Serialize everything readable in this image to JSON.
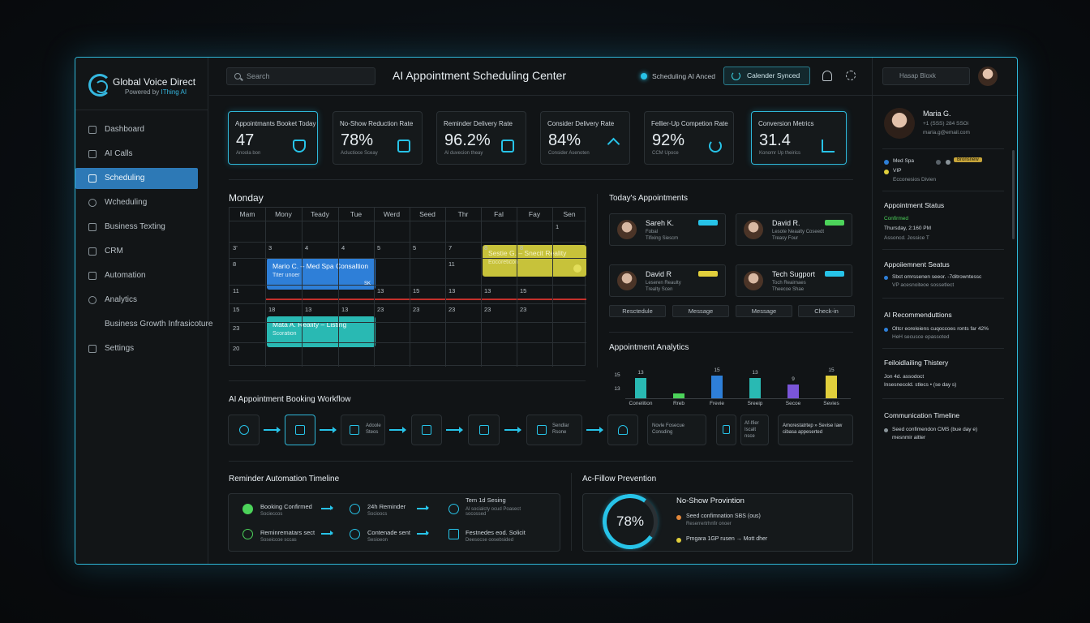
{
  "brand": {
    "name": "Global Voice Direct",
    "powered_prefix": "Powered by",
    "powered_name": "IThing AI"
  },
  "nav": [
    {
      "label": "Dashboard",
      "icon": "dashboard-icon"
    },
    {
      "label": "AI Calls",
      "icon": "calls-icon"
    },
    {
      "label": "Scheduling",
      "icon": "calendar-icon",
      "active": true
    },
    {
      "label": "Wcheduling",
      "icon": "clock-icon"
    },
    {
      "label": "Business Texting",
      "icon": "message-icon"
    },
    {
      "label": "CRM",
      "icon": "crm-icon"
    },
    {
      "label": "Automation",
      "icon": "automation-icon"
    },
    {
      "label": "Analytics",
      "icon": "analytics-icon"
    },
    {
      "label": "Business Growth Infrasicoture",
      "icon": ""
    },
    {
      "label": "Settings",
      "icon": "settings-icon"
    }
  ],
  "header": {
    "search_placeholder": "Search",
    "title": "AI Appointment Scheduling Center",
    "status_label": "Scheduling AI Anced",
    "calendar_button": "Calender Synced"
  },
  "stats": [
    {
      "label": "Appointmants Booket Today",
      "value": "47",
      "sub": "Anoola bon",
      "icon": "shield-icon",
      "highlight": true
    },
    {
      "label": "No-Show Reduction Rate",
      "value": "78%",
      "sub": "Acluctioce Sceay",
      "icon": "robot-icon"
    },
    {
      "label": "Reminder Delivery Rate",
      "value": "96.2%",
      "sub": "Al duvecion theay",
      "icon": "robot-icon"
    },
    {
      "label": "Consider Delivery Rate",
      "value": "84%",
      "sub": "Consider Asenoten",
      "icon": "arrow-up-icon"
    },
    {
      "label": "Fellier-Up Competion Rate",
      "value": "92%",
      "sub": "CCM Upoce",
      "icon": "refresh-icon"
    },
    {
      "label": "Conversion Metrics",
      "value": "31.4",
      "sub": "Konomr Up theirics",
      "icon": "bar-chart-icon",
      "highlight": true
    }
  ],
  "calendar": {
    "title": "Monday",
    "days": [
      "Mam",
      "Mony",
      "Teady",
      "Tue",
      "Werd",
      "Seed",
      "Thr",
      "Fal",
      "Fay",
      "Sen"
    ],
    "rows": [
      [
        "",
        "",
        "",
        "",
        "",
        "",
        "",
        "",
        "",
        "1"
      ],
      [
        "3’",
        "3",
        "4",
        "4",
        "5",
        "5",
        "7",
        "8",
        "8",
        ""
      ],
      [
        "8",
        "",
        "",
        "",
        "",
        "",
        "11",
        "",
        "",
        ""
      ],
      [
        "11",
        "",
        "",
        "",
        "13",
        "15",
        "13",
        "13",
        "15",
        ""
      ],
      [
        "15",
        "18",
        "13",
        "13",
        "23",
        "23",
        "23",
        "23",
        "23",
        ""
      ],
      [
        "23",
        "",
        "",
        "",
        "",
        "",
        "",
        "",
        "",
        ""
      ],
      [
        "20",
        "",
        "",
        "",
        "",
        "",
        "",
        "",
        "",
        ""
      ]
    ],
    "events": [
      {
        "title": "Mario C. – Med Spa Consaltion",
        "sub": "Titer unoer",
        "badge": "SK"
      },
      {
        "title": "Sestie G. – Snecit Reality",
        "sub": "Eocoreticon"
      },
      {
        "title": "Mata A. Reality – Listing",
        "sub": "Scoration"
      }
    ]
  },
  "appointments": {
    "title": "Today's Appointments",
    "cards": [
      {
        "name": "Sareh K.",
        "d1": "Fobal",
        "d2": "Tifixing Siescm",
        "tag_color": "#27c3e8"
      },
      {
        "name": "David R.",
        "d1": "Lesote Neaalty Coseedt",
        "d2": "Treasy Four",
        "tag_color": "#4cd35a"
      },
      {
        "name": "David R",
        "d1": "Leseren Reaulty",
        "d2": "Trealty Scen",
        "tag_color": "#e1cf3c"
      },
      {
        "name": "Tech Sugport",
        "d1": "Toch Reairnaes",
        "d2": "Theecoe Shae",
        "tag_color": "#27c3e8"
      }
    ],
    "actions": [
      "Resctedule",
      "Message",
      "Message",
      "Check-in"
    ]
  },
  "analytics": {
    "title": "Appointment Analytics"
  },
  "chart_data": {
    "type": "bar",
    "categories": [
      "Conelition",
      "Rreb",
      "Frevie",
      "Sreeip",
      "Secoe",
      "Sevies"
    ],
    "values": [
      13,
      3,
      15,
      13,
      9,
      15
    ],
    "value_labels": [
      "13",
      "",
      "15",
      "13",
      "9",
      "15"
    ],
    "colors": [
      "#29b9b3",
      "#4cd35a",
      "#2e7fd8",
      "#29b9b3",
      "#7a55d8",
      "#e1cf3c"
    ],
    "y_ticks": [
      "13",
      "15"
    ],
    "ylim": [
      0,
      18
    ],
    "title": "",
    "xlabel": "",
    "ylabel": ""
  },
  "workflow": {
    "title": "AI Appointment Booking Workflow",
    "steps": [
      {
        "icon": "phone-icon",
        "text": ""
      },
      {
        "icon": "calendar-icon",
        "text": "",
        "highlight": true
      },
      {
        "icon": "calendar-grid-icon",
        "text": "Adoole Steos"
      },
      {
        "icon": "mail-icon",
        "text": ""
      },
      {
        "icon": "document-icon",
        "text": ""
      },
      {
        "icon": "inbox-icon",
        "text": "Sendlar Rsone"
      },
      {
        "icon": "bell-icon",
        "text": ""
      },
      {
        "icon": "",
        "text": "Novle Fosecue Consding"
      },
      {
        "icon": "doc-small-icon",
        "text": ""
      },
      {
        "icon": "",
        "text": "Af-Ifier Iscalt nsce"
      },
      {
        "icon": "",
        "text": "Amorestatrtep » Sevise Iaw cibasa appeserted"
      }
    ]
  },
  "reminders": {
    "title": "Reminder Automation Timeline",
    "row1": [
      {
        "t": "Booking Confirmed",
        "s": "Socieccos"
      },
      {
        "t": "24h Reminder",
        "s": "Socioocs"
      },
      {
        "t": "Tem 1d Sesing",
        "s": "Al socialcty ocud Poasect socossed"
      }
    ],
    "row2": [
      {
        "t": "Reminrematars sect",
        "s": "Soseiccoe sccas"
      },
      {
        "t": "Contenade sent",
        "s": "Sesioeon"
      },
      {
        "t": "Festnedes eod. Solicit",
        "s": "Deesocse oosebsided"
      }
    ]
  },
  "prevention": {
    "section_title": "Ac-Fillow Prevention",
    "panel_title": "No-Show Provintion",
    "gauge_value": "78%",
    "gauge_fraction": 0.78,
    "items": [
      {
        "text": "Seed confimnation SBS (ous)",
        "sub": "Reserrertrhnfir onoer",
        "color": "#e2873a"
      },
      {
        "text": "Pmgara 1GP rusen → Mott dher",
        "sub": "",
        "color": "#e1cf3c"
      }
    ]
  },
  "right": {
    "search_placeholder": "Hasap Bloxk",
    "profile": {
      "name": "Maria G.",
      "phone": "+1 (SSS) 284 SSOi",
      "email": "maria.g@email.com"
    },
    "tags": [
      {
        "text": "Med Spa",
        "color": "#2e7fd8"
      },
      {
        "text": "VIP",
        "color": "#e1cf3c"
      }
    ],
    "tag_badge": "Bronsnew",
    "tags_sub": "Ecconesios Divien",
    "status": {
      "title": "Appointment Status",
      "state": "Confirmed",
      "time": "Thursday, 2:160 PM",
      "note": "Assoncd. Jossice T"
    },
    "status2": {
      "title": "Appoiiemnent Seatus",
      "text": "Sbct omrssenen seeor. -7ditrowntessc",
      "sub": "VP acesnoiteoe sossetlect"
    },
    "reco": {
      "title": "AI Recommenduttions",
      "text": "Oltcr eoreleiens cuqoccoes ronts far 42%",
      "sub": "HeH secusce epassoted"
    },
    "history": {
      "title": "Feiloidlailing Thistery",
      "t1": "Jon 4d. assodoct",
      "t2": "Insesnecold. stlecs • (se day s)"
    },
    "comms": {
      "title": "Communication Timeline",
      "t1": "Seed confimendon CMS (bue day e)",
      "t2": "mesnmir aitter"
    }
  }
}
